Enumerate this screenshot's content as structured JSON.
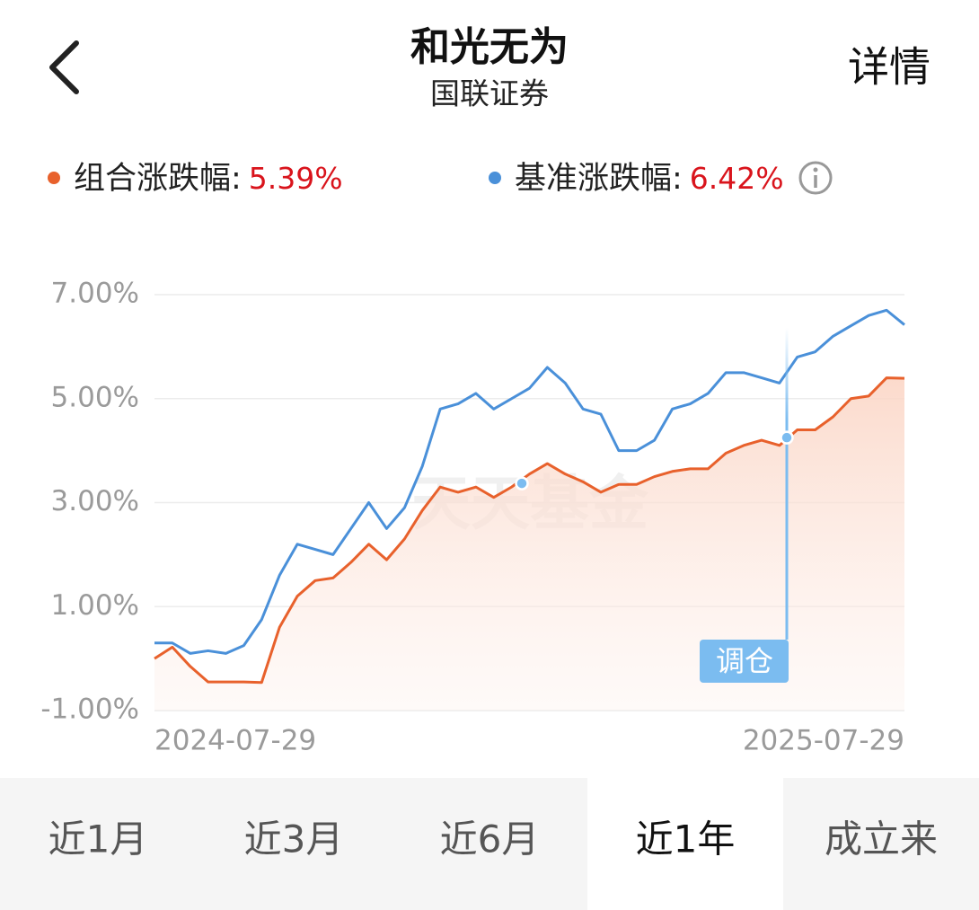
{
  "header": {
    "title": "和光无为",
    "subtitle": "国联证券",
    "action": "详情"
  },
  "watermark": "天天基金",
  "chart_data": {
    "type": "line",
    "x_labels": [
      "2024-07-29",
      "2025-07-29"
    ],
    "ylim": [
      -1,
      7
    ],
    "yticks": [
      {
        "value": 7,
        "label": "7.00%"
      },
      {
        "value": 5,
        "label": "5.00%"
      },
      {
        "value": 3,
        "label": "3.00%"
      },
      {
        "value": 1,
        "label": "1.00%"
      },
      {
        "value": -1,
        "label": "-1.00%"
      }
    ],
    "grid": true,
    "series": [
      {
        "name": "组合涨跌幅:",
        "total_change": "5.39%",
        "color": "#e8612c",
        "area": true,
        "values": [
          0.0,
          0.22,
          -0.15,
          -0.45,
          -0.45,
          -0.45,
          -0.46,
          0.6,
          1.2,
          1.5,
          1.55,
          1.85,
          2.2,
          1.9,
          2.3,
          2.85,
          3.3,
          3.2,
          3.3,
          3.1,
          3.3,
          3.55,
          3.75,
          3.55,
          3.4,
          3.2,
          3.35,
          3.35,
          3.5,
          3.6,
          3.65,
          3.65,
          3.95,
          4.1,
          4.2,
          4.1,
          4.4,
          4.4,
          4.65,
          5.0,
          5.05,
          5.4,
          5.39
        ]
      },
      {
        "name": "基准涨跌幅:",
        "total_change": "6.42%",
        "color": "#4a90d9",
        "area": false,
        "values": [
          0.3,
          0.3,
          0.1,
          0.15,
          0.1,
          0.25,
          0.75,
          1.6,
          2.2,
          2.1,
          2.0,
          2.5,
          3.0,
          2.5,
          2.9,
          3.7,
          4.8,
          4.9,
          5.1,
          4.8,
          5.0,
          5.2,
          5.6,
          5.3,
          4.8,
          4.7,
          4.0,
          4.0,
          4.2,
          4.8,
          4.9,
          5.1,
          5.5,
          5.5,
          5.4,
          5.3,
          5.8,
          5.9,
          6.2,
          6.4,
          6.6,
          6.7,
          6.42
        ]
      }
    ],
    "rebalance_points": [
      {
        "value": 3.37
      },
      {
        "value": 4.25,
        "label": "调仓"
      }
    ]
  },
  "tabs": {
    "items": [
      "近1月",
      "近3月",
      "近6月",
      "近1年",
      "成立来"
    ],
    "selected": "近1年"
  }
}
